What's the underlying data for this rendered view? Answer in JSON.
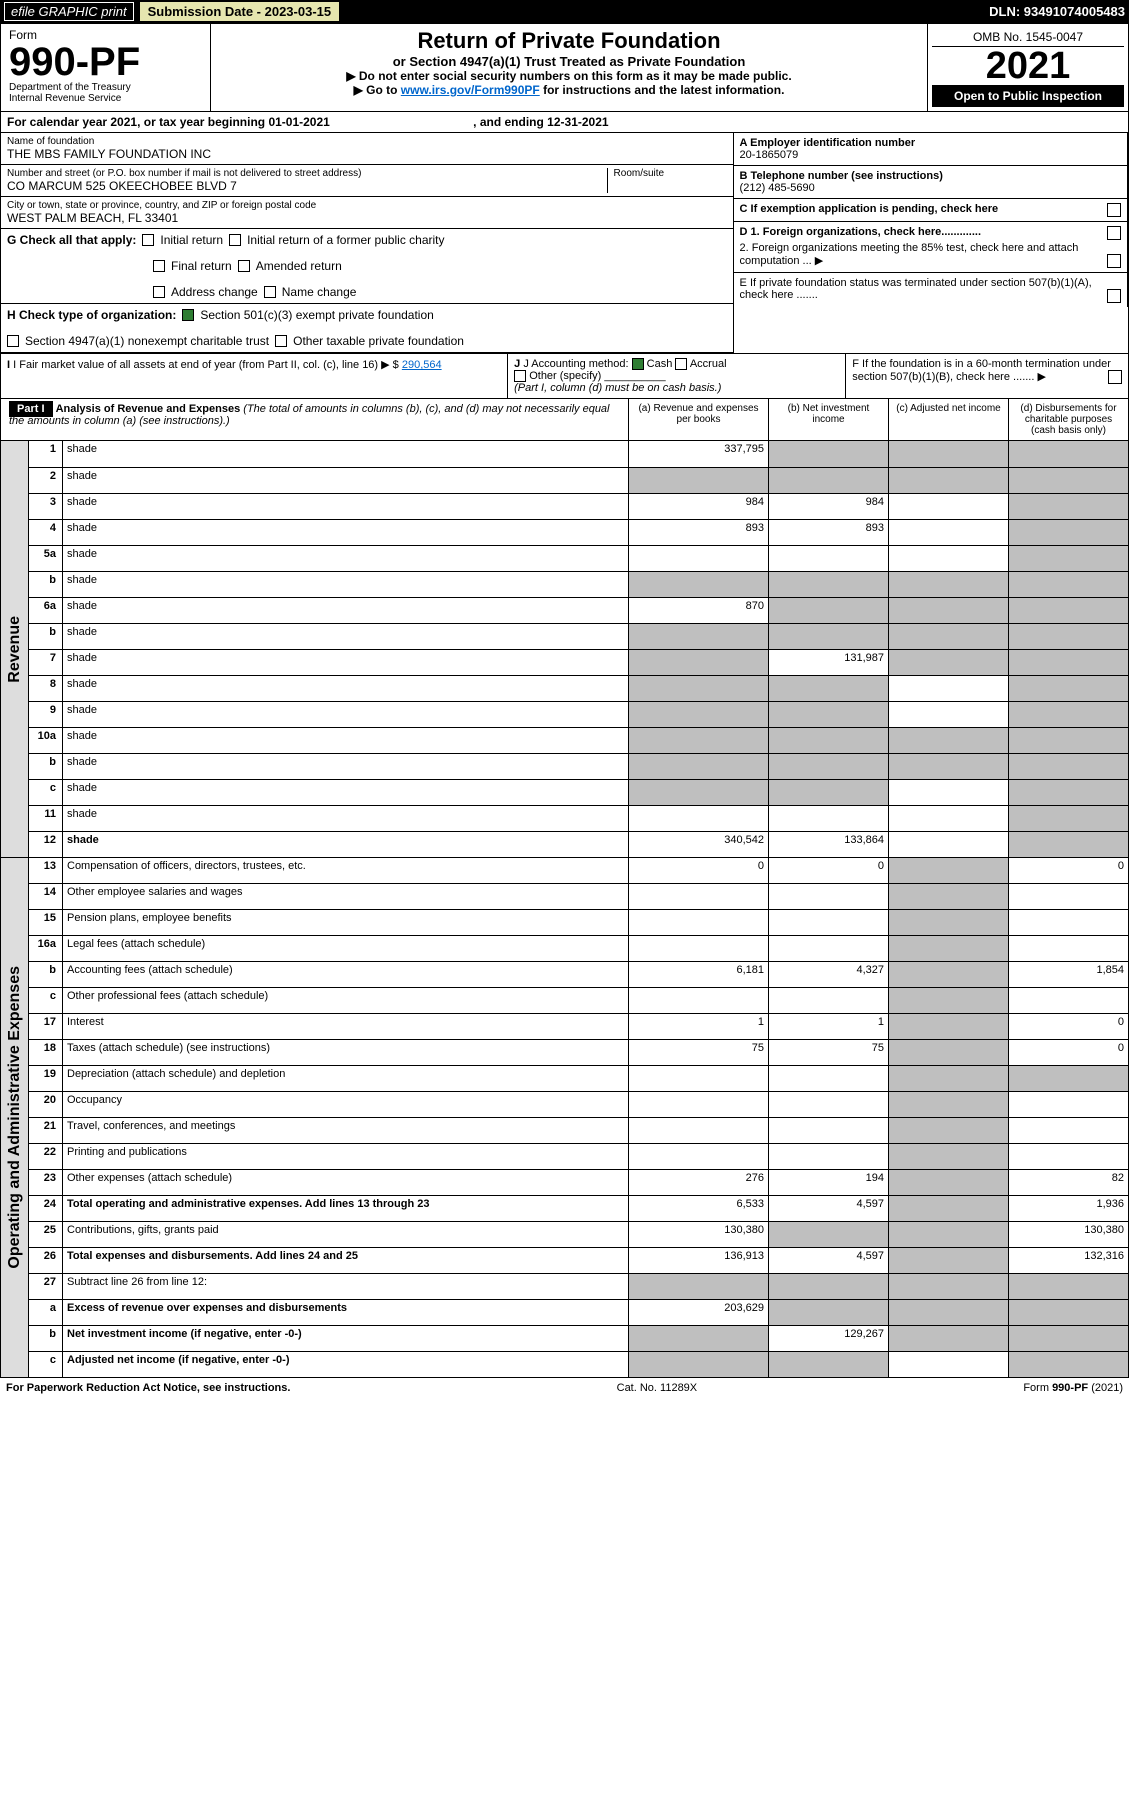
{
  "topbar": {
    "efile": "efile GRAPHIC print",
    "sub_label": "Submission Date - 2023-03-15",
    "dln": "DLN: 93491074005483"
  },
  "header": {
    "form_word": "Form",
    "form_num": "990-PF",
    "dept": "Department of the Treasury",
    "irs": "Internal Revenue Service",
    "title": "Return of Private Foundation",
    "subtitle": "or Section 4947(a)(1) Trust Treated as Private Foundation",
    "instr1": "▶ Do not enter social security numbers on this form as it may be made public.",
    "instr2_pre": "▶ Go to ",
    "instr2_link": "www.irs.gov/Form990PF",
    "instr2_post": " for instructions and the latest information.",
    "omb": "OMB No. 1545-0047",
    "year": "2021",
    "otp": "Open to Public Inspection"
  },
  "cal": {
    "text": "For calendar year 2021, or tax year beginning 01-01-2021",
    "ending": ", and ending 12-31-2021"
  },
  "addr": {
    "name_label": "Name of foundation",
    "name": "THE MBS FAMILY FOUNDATION INC",
    "street_label": "Number and street (or P.O. box number if mail is not delivered to street address)",
    "street": "CO MARCUM 525 OKEECHOBEE BLVD 7",
    "room": "Room/suite",
    "city_label": "City or town, state or province, country, and ZIP or foreign postal code",
    "city": "WEST PALM BEACH, FL  33401",
    "a_label": "A Employer identification number",
    "a_val": "20-1865079",
    "b_label": "B Telephone number (see instructions)",
    "b_val": "(212) 485-5690",
    "c_label": "C If exemption application is pending, check here",
    "d1": "D 1. Foreign organizations, check here.............",
    "d2": "2. Foreign organizations meeting the 85% test, check here and attach computation ...",
    "e": "E  If private foundation status was terminated under section 507(b)(1)(A), check here .......",
    "f": "F  If the foundation is in a 60-month termination under section 507(b)(1)(B), check here .......",
    "g_label": "G Check all that apply:",
    "g_opts": [
      "Initial return",
      "Initial return of a former public charity",
      "Final return",
      "Amended return",
      "Address change",
      "Name change"
    ],
    "h_label": "H Check type of organization:",
    "h_opt1": "Section 501(c)(3) exempt private foundation",
    "h_opt2": "Section 4947(a)(1) nonexempt charitable trust",
    "h_opt3": "Other taxable private foundation",
    "i_label": "I Fair market value of all assets at end of year (from Part II, col. (c), line 16)",
    "i_val": "290,564",
    "j_label": "J Accounting method:",
    "j_cash": "Cash",
    "j_accrual": "Accrual",
    "j_other": "Other (specify)",
    "j_note": "(Part I, column (d) must be on cash basis.)"
  },
  "part1": {
    "tab": "Part I",
    "title": "Analysis of Revenue and Expenses",
    "note": "(The total of amounts in columns (b), (c), and (d) may not necessarily equal the amounts in column (a) (see instructions).)",
    "cols": {
      "a": "(a) Revenue and expenses per books",
      "b": "(b) Net investment income",
      "c": "(c) Adjusted net income",
      "d": "(d) Disbursements for charitable purposes (cash basis only)"
    }
  },
  "sections": {
    "rev": "Revenue",
    "op": "Operating and Administrative Expenses"
  },
  "rows": [
    {
      "n": "1",
      "d": "shade",
      "a": "337,795",
      "b": "shade",
      "c": "shade"
    },
    {
      "n": "2",
      "d": "shade",
      "a": "shade",
      "b": "shade",
      "c": "shade"
    },
    {
      "n": "3",
      "d": "shade",
      "a": "984",
      "b": "984",
      "c": ""
    },
    {
      "n": "4",
      "d": "shade",
      "a": "893",
      "b": "893",
      "c": ""
    },
    {
      "n": "5a",
      "d": "shade",
      "a": "",
      "b": "",
      "c": ""
    },
    {
      "n": "b",
      "d": "shade",
      "a": "shade",
      "b": "shade",
      "c": "shade"
    },
    {
      "n": "6a",
      "d": "shade",
      "a": "870",
      "b": "shade",
      "c": "shade"
    },
    {
      "n": "b",
      "d": "shade",
      "a": "shade",
      "b": "shade",
      "c": "shade"
    },
    {
      "n": "7",
      "d": "shade",
      "a": "shade",
      "b": "131,987",
      "c": "shade"
    },
    {
      "n": "8",
      "d": "shade",
      "a": "shade",
      "b": "shade",
      "c": ""
    },
    {
      "n": "9",
      "d": "shade",
      "a": "shade",
      "b": "shade",
      "c": ""
    },
    {
      "n": "10a",
      "d": "shade",
      "a": "shade",
      "b": "shade",
      "c": "shade"
    },
    {
      "n": "b",
      "d": "shade",
      "a": "shade",
      "b": "shade",
      "c": "shade"
    },
    {
      "n": "c",
      "d": "shade",
      "a": "shade",
      "b": "shade",
      "c": ""
    },
    {
      "n": "11",
      "d": "shade",
      "a": "",
      "b": "",
      "c": ""
    },
    {
      "n": "12",
      "d": "shade",
      "a": "340,542",
      "b": "133,864",
      "c": "",
      "bold": true
    },
    {
      "n": "13",
      "d": "Compensation of officers, directors, trustees, etc.",
      "a": "0",
      "b": "0",
      "c": "shade",
      "dcol": "0"
    },
    {
      "n": "14",
      "d": "Other employee salaries and wages",
      "a": "",
      "b": "",
      "c": "shade",
      "dcol": ""
    },
    {
      "n": "15",
      "d": "Pension plans, employee benefits",
      "a": "",
      "b": "",
      "c": "shade",
      "dcol": ""
    },
    {
      "n": "16a",
      "d": "Legal fees (attach schedule)",
      "a": "",
      "b": "",
      "c": "shade",
      "dcol": ""
    },
    {
      "n": "b",
      "d": "Accounting fees (attach schedule)",
      "a": "6,181",
      "b": "4,327",
      "c": "shade",
      "dcol": "1,854"
    },
    {
      "n": "c",
      "d": "Other professional fees (attach schedule)",
      "a": "",
      "b": "",
      "c": "shade",
      "dcol": ""
    },
    {
      "n": "17",
      "d": "Interest",
      "a": "1",
      "b": "1",
      "c": "shade",
      "dcol": "0"
    },
    {
      "n": "18",
      "d": "Taxes (attach schedule) (see instructions)",
      "a": "75",
      "b": "75",
      "c": "shade",
      "dcol": "0"
    },
    {
      "n": "19",
      "d": "Depreciation (attach schedule) and depletion",
      "a": "",
      "b": "",
      "c": "shade",
      "dcol": "shade"
    },
    {
      "n": "20",
      "d": "Occupancy",
      "a": "",
      "b": "",
      "c": "shade",
      "dcol": ""
    },
    {
      "n": "21",
      "d": "Travel, conferences, and meetings",
      "a": "",
      "b": "",
      "c": "shade",
      "dcol": ""
    },
    {
      "n": "22",
      "d": "Printing and publications",
      "a": "",
      "b": "",
      "c": "shade",
      "dcol": ""
    },
    {
      "n": "23",
      "d": "Other expenses (attach schedule)",
      "a": "276",
      "b": "194",
      "c": "shade",
      "dcol": "82"
    },
    {
      "n": "24",
      "d": "Total operating and administrative expenses. Add lines 13 through 23",
      "a": "6,533",
      "b": "4,597",
      "c": "shade",
      "dcol": "1,936",
      "bold": true
    },
    {
      "n": "25",
      "d": "Contributions, gifts, grants paid",
      "a": "130,380",
      "b": "shade",
      "c": "shade",
      "dcol": "130,380"
    },
    {
      "n": "26",
      "d": "Total expenses and disbursements. Add lines 24 and 25",
      "a": "136,913",
      "b": "4,597",
      "c": "shade",
      "dcol": "132,316",
      "bold": true
    },
    {
      "n": "27",
      "d": "Subtract line 26 from line 12:",
      "a": "shade",
      "b": "shade",
      "c": "shade",
      "dcol": "shade"
    },
    {
      "n": "a",
      "d": "Excess of revenue over expenses and disbursements",
      "a": "203,629",
      "b": "shade",
      "c": "shade",
      "dcol": "shade",
      "bold": true
    },
    {
      "n": "b",
      "d": "Net investment income (if negative, enter -0-)",
      "a": "shade",
      "b": "129,267",
      "c": "shade",
      "dcol": "shade",
      "bold": true
    },
    {
      "n": "c",
      "d": "Adjusted net income (if negative, enter -0-)",
      "a": "shade",
      "b": "shade",
      "c": "",
      "dcol": "shade",
      "bold": true
    }
  ],
  "footer": {
    "left": "For Paperwork Reduction Act Notice, see instructions.",
    "mid": "Cat. No. 11289X",
    "right": "Form 990-PF (2021)"
  },
  "colors": {
    "link": "#0066cc",
    "shade": "#bfbfbf",
    "subbg": "#e6e6af",
    "checkfill": "#2e7d32"
  }
}
